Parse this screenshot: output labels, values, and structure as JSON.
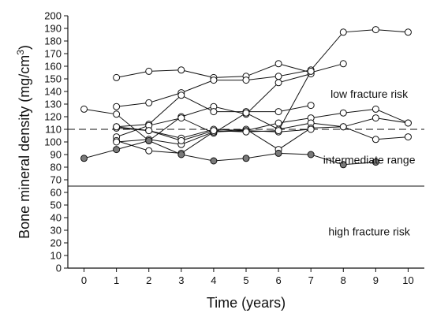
{
  "chart_data": {
    "type": "line",
    "title": "",
    "xlabel": "Time (years)",
    "ylabel_main": "Bone mineral density (mg/cm",
    "ylabel_sup": "3",
    "ylabel_close": ")",
    "xlim": [
      -0.5,
      10.5
    ],
    "ylim": [
      0,
      200
    ],
    "x_ticks": [
      0,
      1,
      2,
      3,
      4,
      5,
      6,
      7,
      8,
      9,
      10
    ],
    "y_ticks": [
      0,
      10,
      20,
      30,
      40,
      50,
      60,
      70,
      80,
      90,
      100,
      110,
      120,
      130,
      140,
      150,
      160,
      170,
      180,
      190,
      200
    ],
    "grid": false,
    "reference_lines": [
      {
        "y": 110,
        "style": "dashed"
      },
      {
        "y": 65,
        "style": "solid"
      }
    ],
    "region_labels": [
      {
        "text": "low fracture risk",
        "x": 8.8,
        "y": 138
      },
      {
        "text": "intermediate range",
        "x": 8.8,
        "y": 86
      },
      {
        "text": "high fracture risk",
        "x": 8.8,
        "y": 29
      }
    ],
    "series": [
      {
        "marker": "open",
        "points": [
          [
            1,
            151
          ],
          [
            2,
            156
          ],
          [
            3,
            157
          ],
          [
            4,
            151
          ],
          [
            5,
            152
          ],
          [
            6,
            162
          ],
          [
            7,
            155
          ],
          [
            8,
            162
          ]
        ]
      },
      {
        "marker": "open",
        "points": [
          [
            1,
            128
          ],
          [
            2,
            131
          ],
          [
            3,
            139
          ],
          [
            4,
            149
          ],
          [
            5,
            149
          ],
          [
            6,
            152
          ],
          [
            7,
            157
          ],
          [
            8,
            187
          ],
          [
            9,
            189
          ],
          [
            10,
            187
          ]
        ]
      },
      {
        "marker": "open",
        "points": [
          [
            0,
            126
          ],
          [
            1,
            122
          ],
          [
            2,
            101
          ],
          [
            3,
            120
          ],
          [
            4,
            128
          ],
          [
            5,
            122
          ],
          [
            6,
            147
          ],
          [
            7,
            154
          ]
        ]
      },
      {
        "marker": "open",
        "points": [
          [
            1,
            112
          ],
          [
            2,
            114
          ],
          [
            3,
            137
          ],
          [
            4,
            124
          ],
          [
            5,
            124
          ],
          [
            6,
            124
          ],
          [
            7,
            129
          ]
        ]
      },
      {
        "marker": "open",
        "points": [
          [
            1,
            111
          ],
          [
            2,
            109
          ],
          [
            3,
            103
          ],
          [
            4,
            110
          ],
          [
            5,
            109
          ],
          [
            6,
            115
          ],
          [
            7,
            119
          ],
          [
            8,
            123
          ],
          [
            9,
            126
          ],
          [
            10,
            115
          ]
        ]
      },
      {
        "marker": "open",
        "points": [
          [
            1,
            104
          ],
          [
            2,
            113
          ],
          [
            3,
            119
          ],
          [
            4,
            107
          ],
          [
            5,
            123
          ],
          [
            6,
            110
          ],
          [
            7,
            115
          ],
          [
            8,
            112
          ],
          [
            9,
            102
          ],
          [
            10,
            104
          ]
        ]
      },
      {
        "marker": "open",
        "points": [
          [
            1,
            101
          ],
          [
            2,
            93
          ],
          [
            3,
            91
          ],
          [
            4,
            108
          ],
          [
            5,
            110
          ],
          [
            6,
            94
          ],
          [
            7,
            111
          ],
          [
            8,
            112
          ],
          [
            9,
            119
          ],
          [
            10,
            115
          ]
        ]
      },
      {
        "marker": "open",
        "points": [
          [
            1,
            100
          ],
          [
            2,
            102
          ],
          [
            3,
            98
          ],
          [
            4,
            108
          ],
          [
            5,
            109
          ],
          [
            6,
            108
          ],
          [
            7,
            110
          ]
        ]
      },
      {
        "marker": "open",
        "points": [
          [
            1,
            112
          ],
          [
            2,
            109
          ],
          [
            3,
            101
          ],
          [
            4,
            109
          ],
          [
            5,
            108
          ],
          [
            6,
            109
          ],
          [
            7,
            156
          ]
        ]
      },
      {
        "marker": "filled",
        "points": [
          [
            0,
            87
          ],
          [
            1,
            94
          ],
          [
            2,
            101
          ],
          [
            3,
            90
          ],
          [
            4,
            85
          ],
          [
            5,
            87
          ],
          [
            6,
            91
          ],
          [
            7,
            90
          ],
          [
            8,
            82
          ],
          [
            9,
            84
          ]
        ]
      }
    ],
    "colors": {
      "line": "#111111",
      "filled_marker": "#7a7a7a",
      "open_marker": "#ffffff"
    }
  }
}
